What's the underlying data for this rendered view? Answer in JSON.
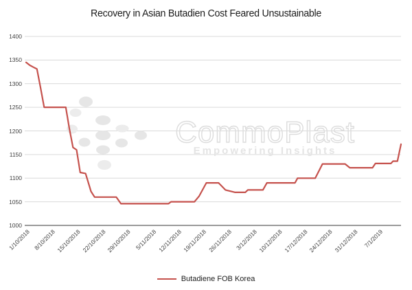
{
  "title": "Recovery in Asian Butadien Cost Feared Unsustainable",
  "watermark": {
    "brand": "CommoPlast",
    "tagline": "Empowering Insights"
  },
  "legend": {
    "label": "Butadiene FOB Korea"
  },
  "colors": {
    "line": "#c5514c",
    "grid": "#d9d9d9",
    "axis": "#9a9a9a",
    "title_text": "#1a1a1a",
    "tick_text": "#404040",
    "watermark_stroke": "#dcdcdc",
    "watermark_fill": "#e4e4e4",
    "watermark_dots": "#e6e6e6"
  },
  "chart_data": {
    "type": "line",
    "title": "Recovery in Asian Butadien Cost Feared Unsustainable",
    "xlabel": "",
    "ylabel": "",
    "grid": "horizontal",
    "legend_position": "bottom",
    "ylim": [
      1000,
      1400
    ],
    "y_ticks": [
      1000,
      1050,
      1100,
      1150,
      1200,
      1250,
      1300,
      1350,
      1400
    ],
    "x_tick_labels": [
      "1/10/2018",
      "8/10/2018",
      "15/10/2018",
      "22/10/2018",
      "29/10/2018",
      "5/11/2018",
      "12/11/2018",
      "19/11/2018",
      "26/11/2018",
      "3/12/2018",
      "10/12/2018",
      "17/12/2018",
      "24/12/2018",
      "31/12/2018",
      "7/1/2019"
    ],
    "x_unit": "days since 1/10/2018 (weekly tick labels)",
    "xlim_days": [
      0,
      104
    ],
    "series": [
      {
        "name": "Butadiene FOB Korea",
        "points": [
          [
            0,
            1345
          ],
          [
            1,
            1339
          ],
          [
            2,
            1335
          ],
          [
            3,
            1331
          ],
          [
            4,
            1292
          ],
          [
            5,
            1250
          ],
          [
            11,
            1250
          ],
          [
            12,
            1205
          ],
          [
            13,
            1165
          ],
          [
            14,
            1160
          ],
          [
            15,
            1112
          ],
          [
            16.5,
            1110
          ],
          [
            18,
            1072
          ],
          [
            19,
            1060
          ],
          [
            25,
            1060
          ],
          [
            26.3,
            1046
          ],
          [
            39.5,
            1046
          ],
          [
            40.2,
            1050
          ],
          [
            46.7,
            1050
          ],
          [
            48,
            1062
          ],
          [
            50,
            1090
          ],
          [
            53.4,
            1090
          ],
          [
            55.3,
            1075
          ],
          [
            58,
            1070
          ],
          [
            60.8,
            1070
          ],
          [
            61.5,
            1075
          ],
          [
            65.7,
            1075
          ],
          [
            66.8,
            1090
          ],
          [
            74.6,
            1090
          ],
          [
            75.3,
            1100
          ],
          [
            80.2,
            1100
          ],
          [
            82.2,
            1130
          ],
          [
            88.5,
            1130
          ],
          [
            89.8,
            1122
          ],
          [
            96.1,
            1122
          ],
          [
            96.9,
            1131
          ],
          [
            101.2,
            1131
          ],
          [
            101.8,
            1136
          ],
          [
            103,
            1136
          ],
          [
            104,
            1172
          ]
        ]
      }
    ]
  }
}
